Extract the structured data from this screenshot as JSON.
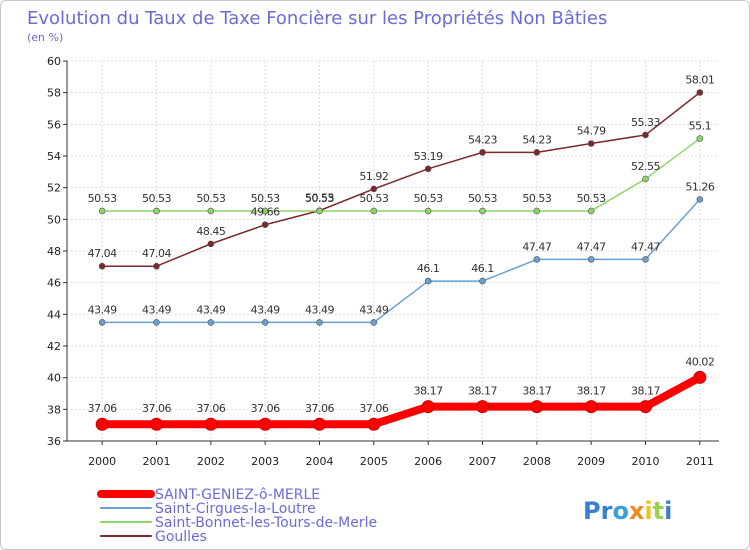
{
  "chart_data": {
    "type": "line",
    "title": "Evolution du Taux de Taxe Foncière sur les Propriétés Non Bâties",
    "subtitle": "(en %)",
    "x": [
      "2000",
      "2001",
      "2002",
      "2003",
      "2004",
      "2005",
      "2006",
      "2007",
      "2008",
      "2009",
      "2010",
      "2011"
    ],
    "ylim": [
      36,
      60
    ],
    "yticks": [
      36,
      38,
      40,
      42,
      44,
      46,
      48,
      50,
      52,
      54,
      56,
      58,
      60
    ],
    "grid": true,
    "legend_position": "bottom-left",
    "series": [
      {
        "name": "SAINT-GENIEZ-ô-MERLE",
        "color": "#ff0000",
        "values": [
          37.06,
          37.06,
          37.06,
          37.06,
          37.06,
          37.06,
          38.17,
          38.17,
          38.17,
          38.17,
          38.17,
          40.02
        ],
        "labels": [
          "37.06",
          "37.06",
          "37.06",
          "37.06",
          "37.06",
          "37.06",
          "38.17",
          "38.17",
          "38.17",
          "38.17",
          "38.17",
          "40.02"
        ]
      },
      {
        "name": "Saint-Cirgues-la-Loutre",
        "color": "#6a9fd4",
        "values": [
          43.49,
          43.49,
          43.49,
          43.49,
          43.49,
          43.49,
          46.1,
          46.1,
          47.47,
          47.47,
          47.47,
          51.26
        ],
        "labels": [
          "43.49",
          "43.49",
          "43.49",
          "43.49",
          "43.49",
          "43.49",
          "46.1",
          "46.1",
          "47.47",
          "47.47",
          "47.47",
          "51.26"
        ]
      },
      {
        "name": "Saint-Bonnet-les-Tours-de-Merle",
        "color": "#8fd46a",
        "values": [
          50.53,
          50.53,
          50.53,
          50.53,
          50.53,
          50.53,
          50.53,
          50.53,
          50.53,
          50.53,
          52.55,
          55.1
        ],
        "labels": [
          "50.53",
          "50.53",
          "50.53",
          "50.53",
          "50.53",
          "50.53",
          "50.53",
          "50.53",
          "50.53",
          "50.53",
          "52.55",
          "55.1"
        ]
      },
      {
        "name": "Goulles",
        "color": "#7a2a2a",
        "values": [
          47.04,
          47.04,
          48.45,
          49.66,
          50.55,
          51.92,
          53.19,
          54.23,
          54.23,
          54.79,
          55.33,
          58.01
        ],
        "labels": [
          "47.04",
          "47.04",
          "48.45",
          "49.66",
          "50.55",
          "51.92",
          "53.19",
          "54.23",
          "54.23",
          "54.79",
          "55.33",
          "58.01"
        ]
      }
    ]
  },
  "logo": {
    "text": "Proxiti"
  }
}
